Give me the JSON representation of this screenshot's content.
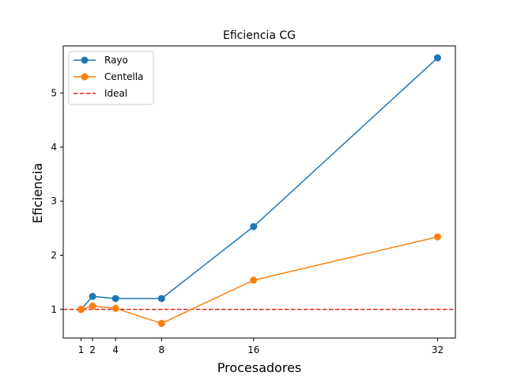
{
  "chart_data": {
    "type": "line",
    "title": "Eficiencia CG",
    "xlabel": "Procesadores",
    "ylabel": "Eficiencia",
    "x": [
      1,
      2,
      4,
      8,
      16,
      32
    ],
    "x_ticks": [
      "1",
      "2",
      "4",
      "8",
      "16",
      "32"
    ],
    "y_ticks": [
      "1",
      "2",
      "3",
      "4",
      "5"
    ],
    "xlim": [
      -0.55,
      33.55
    ],
    "ylim": [
      0.47,
      5.87
    ],
    "grid": false,
    "legend_position": "top-left",
    "series": [
      {
        "name": "Rayo",
        "values": [
          1.0,
          1.24,
          1.2,
          1.2,
          2.53,
          5.65
        ],
        "color": "#1f77b4",
        "marker": "circle"
      },
      {
        "name": "Centella",
        "values": [
          1.0,
          1.06,
          1.02,
          0.74,
          1.54,
          2.34
        ],
        "color": "#ff7f0e",
        "marker": "circle"
      }
    ],
    "reference_line": {
      "name": "Ideal",
      "y": 1,
      "color": "#d62728",
      "style": "dashed"
    }
  }
}
